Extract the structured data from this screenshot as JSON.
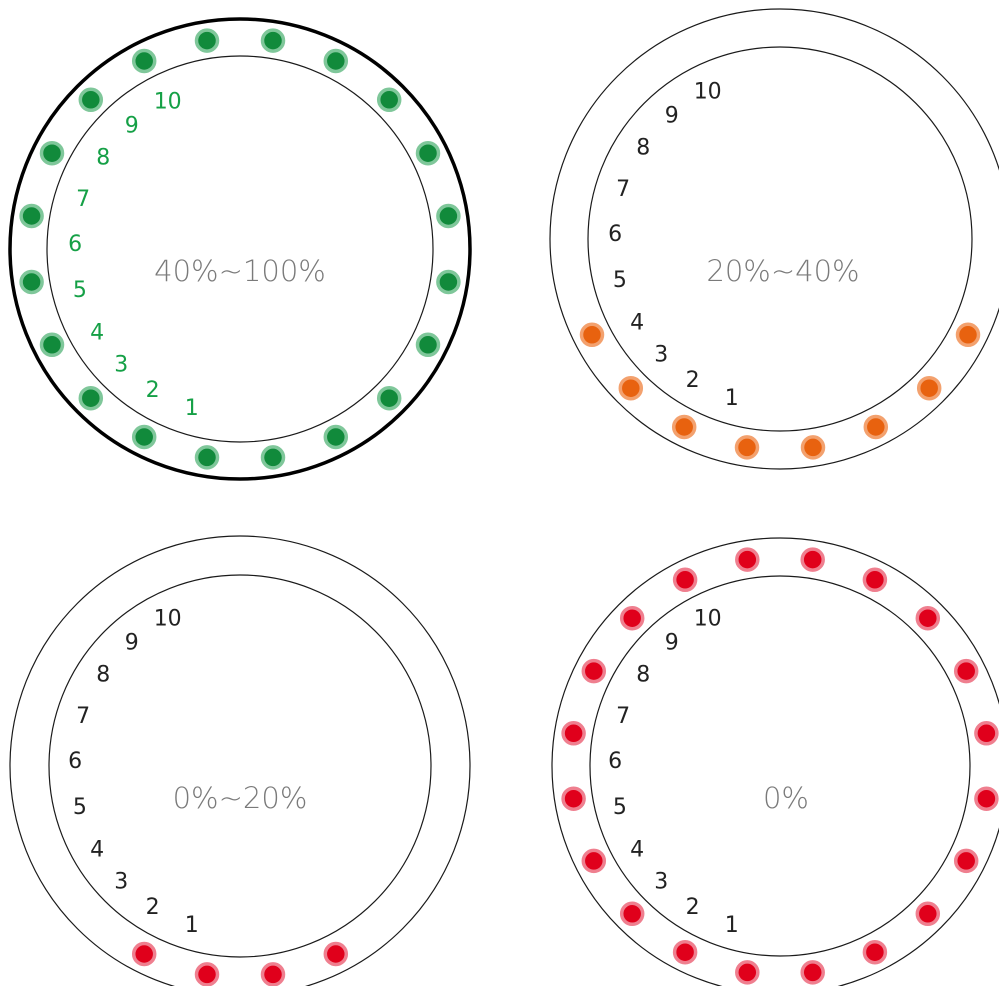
{
  "colors": {
    "green_fill": "#118a3b",
    "green_halo": "#7fc79a",
    "green_text": "#15a046",
    "orange_fill": "#e8620f",
    "orange_halo": "#f3a16e",
    "red_fill": "#e0001b",
    "red_halo": "#ef7f8f",
    "ring_stroke": "#1a1a1a",
    "label_text": "#222222"
  },
  "dials": [
    {
      "center_label": "40%~100%",
      "indicator": "all",
      "color": "green",
      "numbers": [
        "1",
        "2",
        "3",
        "4",
        "5",
        "6",
        "7",
        "8",
        "9",
        "10"
      ]
    },
    {
      "center_label": "20%~40%",
      "indicator": "bottom-eight",
      "color": "orange",
      "numbers": [
        "1",
        "2",
        "3",
        "4",
        "5",
        "6",
        "7",
        "8",
        "9",
        "10"
      ]
    },
    {
      "center_label": "0%~20%",
      "indicator": "bottom-four",
      "color": "red",
      "numbers": [
        "1",
        "2",
        "3",
        "4",
        "5",
        "6",
        "7",
        "8",
        "9",
        "10"
      ]
    },
    {
      "center_label": "0%",
      "indicator": "all",
      "color": "red",
      "numbers": [
        "1",
        "2",
        "3",
        "4",
        "5",
        "6",
        "7",
        "8",
        "9",
        "10"
      ]
    }
  ]
}
